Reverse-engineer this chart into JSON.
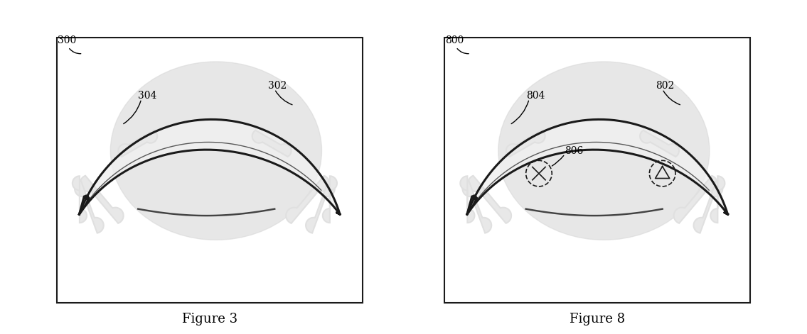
{
  "fig_width": 11.35,
  "fig_height": 4.71,
  "bg_color": "#ffffff",
  "panel_bg": "#f5f5f5",
  "box_color": "#1a1a1a",
  "figure_labels": [
    "Figure 3",
    "Figure 8"
  ],
  "fig3_ref": "300",
  "fig3_label1": "304",
  "fig3_label2": "302",
  "fig8_ref": "800",
  "fig8_label1": "804",
  "fig8_label2": "802",
  "fig8_label3": "806",
  "label_fontsize": 10,
  "figure_label_fontsize": 13
}
